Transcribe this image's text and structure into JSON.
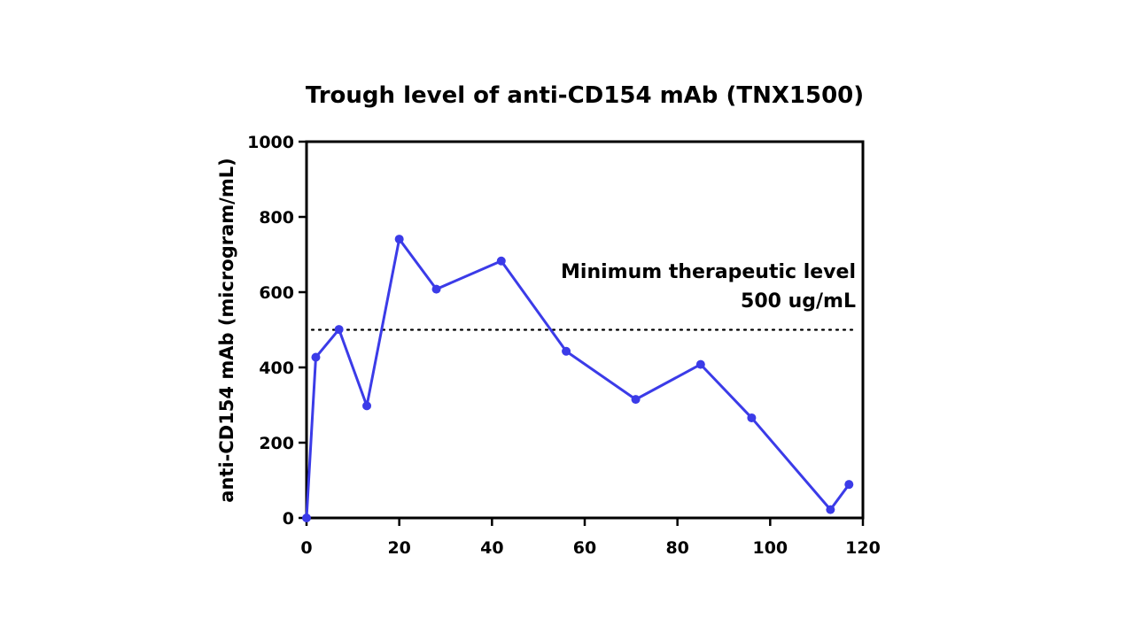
{
  "chart_data": {
    "type": "line",
    "title": "Trough level of anti-CD154 mAb (TNX1500)",
    "xlabel": "",
    "ylabel": "anti-CD154 mAb (microgram/mL)",
    "xlim": [
      0,
      120
    ],
    "ylim": [
      0,
      1000
    ],
    "xticks": [
      0,
      20,
      40,
      60,
      80,
      100,
      120
    ],
    "yticks": [
      0,
      200,
      400,
      600,
      800,
      1000
    ],
    "xtick_labels": [
      "0",
      "20",
      "40",
      "60",
      "80",
      "100",
      "120"
    ],
    "ytick_labels": [
      "0",
      "200",
      "400",
      "600",
      "800",
      "1000"
    ],
    "grid": false,
    "series": [
      {
        "name": "TNX1500 trough level",
        "color": "#3b3be8",
        "x": [
          0,
          2,
          7,
          13,
          20,
          28,
          42,
          56,
          71,
          85,
          96,
          113,
          117
        ],
        "y": [
          0,
          427,
          501,
          298,
          741,
          608,
          683,
          443,
          315,
          408,
          266,
          22,
          89
        ]
      }
    ],
    "reference_line": {
      "y": 500,
      "style": "dotted",
      "color": "#000000"
    },
    "annotation": {
      "line1": "Minimum therapeutic level",
      "line2": "500 ug/mL",
      "anchor": "right, above reference line"
    }
  }
}
